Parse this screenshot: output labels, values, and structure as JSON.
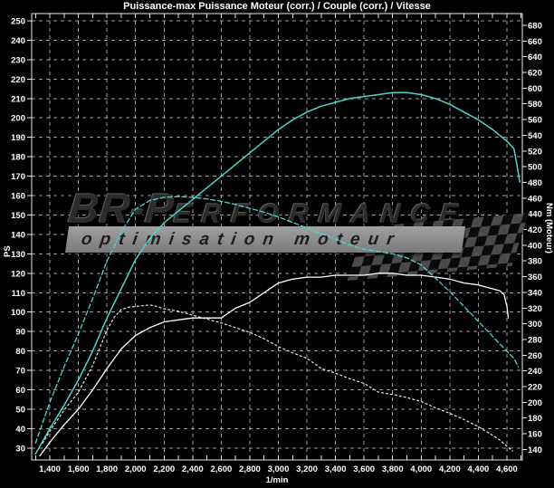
{
  "window": {
    "background": "#000000"
  },
  "colors": {
    "curve_cyan": "#4dd5d0",
    "curve_white": "#ffffff",
    "grid": "#9f9f9f",
    "axis": "#e8e8e8",
    "text": "#ffffff",
    "band_background": "#8f8f8f",
    "band_text": "#1d1d1d",
    "brand_text": "#2c2c2c"
  },
  "watermark": {
    "brand_large": "BR-P",
    "brand_small": "ERFORMANCE",
    "tagline": "optimisation moteur",
    "flag_icon": "checkered-flag"
  },
  "chart_data": {
    "type": "line",
    "title": "Puissance-max Puissance Moteur (corr.) / Couple (corr.) / Vitesse",
    "grid": true,
    "legend": false,
    "x_axis": {
      "unit_label": "1/min",
      "range": [
        1273,
        4708
      ],
      "minor_tick_step": 100,
      "minor_tick_start": 1300,
      "minor_tick_end": 4700,
      "ticks": [
        {
          "value": 1400,
          "label": "1,400"
        },
        {
          "value": 1600,
          "label": "1,600"
        },
        {
          "value": 1800,
          "label": "1,800"
        },
        {
          "value": 2000,
          "label": "2,000"
        },
        {
          "value": 2200,
          "label": "2,200"
        },
        {
          "value": 2400,
          "label": "2,400"
        },
        {
          "value": 2600,
          "label": "2,600"
        },
        {
          "value": 2800,
          "label": "2,800"
        },
        {
          "value": 3000,
          "label": "3,000"
        },
        {
          "value": 3200,
          "label": "3,200"
        },
        {
          "value": 3400,
          "label": "3,400"
        },
        {
          "value": 3600,
          "label": "3,600"
        },
        {
          "value": 3800,
          "label": "3,800"
        },
        {
          "value": 4000,
          "label": "4,000"
        },
        {
          "value": 4200,
          "label": "4,200"
        },
        {
          "value": 4400,
          "label": "4,400"
        },
        {
          "value": 4600,
          "label": "4,600"
        }
      ]
    },
    "y_left": {
      "unit_label": "PS",
      "range": [
        23.9,
        253.7
      ],
      "ticks": [
        250,
        240,
        230,
        220,
        210,
        200,
        190,
        180,
        170,
        160,
        150,
        140,
        130,
        120,
        110,
        100,
        90,
        80,
        70,
        60,
        50,
        40,
        30
      ]
    },
    "y_right": {
      "unit_label": "Nm (Moteur)",
      "range": [
        126.6,
        695
      ],
      "ticks": [
        680,
        660,
        640,
        620,
        600,
        580,
        560,
        540,
        520,
        500,
        480,
        460,
        440,
        420,
        400,
        380,
        360,
        340,
        320,
        300,
        280,
        260,
        240,
        220,
        200,
        180,
        160,
        140
      ]
    },
    "series": [
      {
        "id": "couple-2",
        "label": "Couple (corr.)",
        "axis": "right",
        "color": "#e8e8e8",
        "dash": "2 3",
        "width": 1.2,
        "points": [
          [
            1350,
            148
          ],
          [
            1400,
            163
          ],
          [
            1500,
            190
          ],
          [
            1600,
            213
          ],
          [
            1700,
            247
          ],
          [
            1800,
            292
          ],
          [
            1850,
            308
          ],
          [
            1900,
            318
          ],
          [
            1950,
            321
          ],
          [
            2000,
            322
          ],
          [
            2050,
            323
          ],
          [
            2100,
            324
          ],
          [
            2150,
            322
          ],
          [
            2200,
            319
          ],
          [
            2300,
            316
          ],
          [
            2400,
            311
          ],
          [
            2500,
            306
          ],
          [
            2600,
            301
          ],
          [
            2700,
            295
          ],
          [
            2800,
            289
          ],
          [
            2900,
            281
          ],
          [
            3000,
            271
          ],
          [
            3100,
            263
          ],
          [
            3200,
            256
          ],
          [
            3300,
            243
          ],
          [
            3400,
            237
          ],
          [
            3500,
            230
          ],
          [
            3600,
            224
          ],
          [
            3700,
            213
          ],
          [
            3800,
            210
          ],
          [
            3900,
            206
          ],
          [
            4000,
            201
          ],
          [
            4100,
            193
          ],
          [
            4200,
            186
          ],
          [
            4300,
            178
          ],
          [
            4400,
            169
          ],
          [
            4500,
            158
          ],
          [
            4550,
            152
          ],
          [
            4600,
            144
          ],
          [
            4640,
            138
          ]
        ]
      },
      {
        "id": "puissance-2",
        "label": "Puissance Moteur (corr.)",
        "axis": "left",
        "color": "#ffffff",
        "dash": "",
        "width": 1.3,
        "points": [
          [
            1330,
            26
          ],
          [
            1400,
            33
          ],
          [
            1500,
            42
          ],
          [
            1600,
            50
          ],
          [
            1700,
            60
          ],
          [
            1800,
            71
          ],
          [
            1900,
            81
          ],
          [
            2000,
            88
          ],
          [
            2100,
            92
          ],
          [
            2200,
            95
          ],
          [
            2300,
            96
          ],
          [
            2400,
            97
          ],
          [
            2500,
            97
          ],
          [
            2600,
            97
          ],
          [
            2700,
            102
          ],
          [
            2800,
            105
          ],
          [
            2900,
            110
          ],
          [
            3000,
            115
          ],
          [
            3100,
            117
          ],
          [
            3200,
            118
          ],
          [
            3300,
            118
          ],
          [
            3400,
            119
          ],
          [
            3500,
            119
          ],
          [
            3600,
            119
          ],
          [
            3700,
            120
          ],
          [
            3800,
            120
          ],
          [
            3900,
            119
          ],
          [
            4000,
            119
          ],
          [
            4100,
            118
          ],
          [
            4200,
            117
          ],
          [
            4300,
            115
          ],
          [
            4400,
            114
          ],
          [
            4500,
            112
          ],
          [
            4550,
            111
          ],
          [
            4580,
            109
          ],
          [
            4600,
            103
          ],
          [
            4610,
            97
          ]
        ]
      },
      {
        "id": "couple-1",
        "label": "Couple (corr.)",
        "axis": "right",
        "color": "#4dd5d0",
        "dash": "5 3",
        "width": 1.3,
        "points": [
          [
            1300,
            148
          ],
          [
            1400,
            200
          ],
          [
            1500,
            245
          ],
          [
            1600,
            287
          ],
          [
            1700,
            332
          ],
          [
            1800,
            380
          ],
          [
            1900,
            417
          ],
          [
            2000,
            446
          ],
          [
            2100,
            457
          ],
          [
            2200,
            461
          ],
          [
            2300,
            462
          ],
          [
            2400,
            461
          ],
          [
            2500,
            459
          ],
          [
            2600,
            456
          ],
          [
            2700,
            452
          ],
          [
            2800,
            447
          ],
          [
            2900,
            442
          ],
          [
            3000,
            436
          ],
          [
            3100,
            429
          ],
          [
            3200,
            422
          ],
          [
            3300,
            415
          ],
          [
            3400,
            408
          ],
          [
            3500,
            400
          ],
          [
            3600,
            395
          ],
          [
            3700,
            392
          ],
          [
            3800,
            389
          ],
          [
            3900,
            384
          ],
          [
            4000,
            375
          ],
          [
            4100,
            358
          ],
          [
            4200,
            341
          ],
          [
            4300,
            322
          ],
          [
            4400,
            303
          ],
          [
            4500,
            284
          ],
          [
            4600,
            265
          ],
          [
            4650,
            256
          ],
          [
            4680,
            245
          ]
        ]
      },
      {
        "id": "puissance-1",
        "label": "Puissance Moteur (corr.)",
        "axis": "left",
        "color": "#4dd5d0",
        "dash": "",
        "width": 1.5,
        "points": [
          [
            1300,
            27
          ],
          [
            1400,
            40
          ],
          [
            1500,
            52
          ],
          [
            1600,
            65
          ],
          [
            1700,
            80
          ],
          [
            1800,
            97
          ],
          [
            1900,
            112
          ],
          [
            2000,
            127
          ],
          [
            2100,
            138
          ],
          [
            2200,
            146
          ],
          [
            2300,
            152
          ],
          [
            2400,
            158
          ],
          [
            2500,
            164
          ],
          [
            2600,
            170
          ],
          [
            2700,
            176
          ],
          [
            2800,
            182
          ],
          [
            2900,
            188
          ],
          [
            3000,
            194
          ],
          [
            3100,
            199
          ],
          [
            3200,
            203
          ],
          [
            3300,
            206
          ],
          [
            3400,
            208
          ],
          [
            3500,
            210
          ],
          [
            3600,
            211
          ],
          [
            3700,
            212
          ],
          [
            3800,
            213
          ],
          [
            3900,
            213
          ],
          [
            4000,
            212
          ],
          [
            4100,
            210
          ],
          [
            4200,
            207
          ],
          [
            4300,
            203
          ],
          [
            4400,
            199
          ],
          [
            4500,
            194
          ],
          [
            4600,
            188
          ],
          [
            4650,
            184
          ],
          [
            4670,
            176
          ],
          [
            4690,
            167
          ]
        ]
      }
    ]
  }
}
